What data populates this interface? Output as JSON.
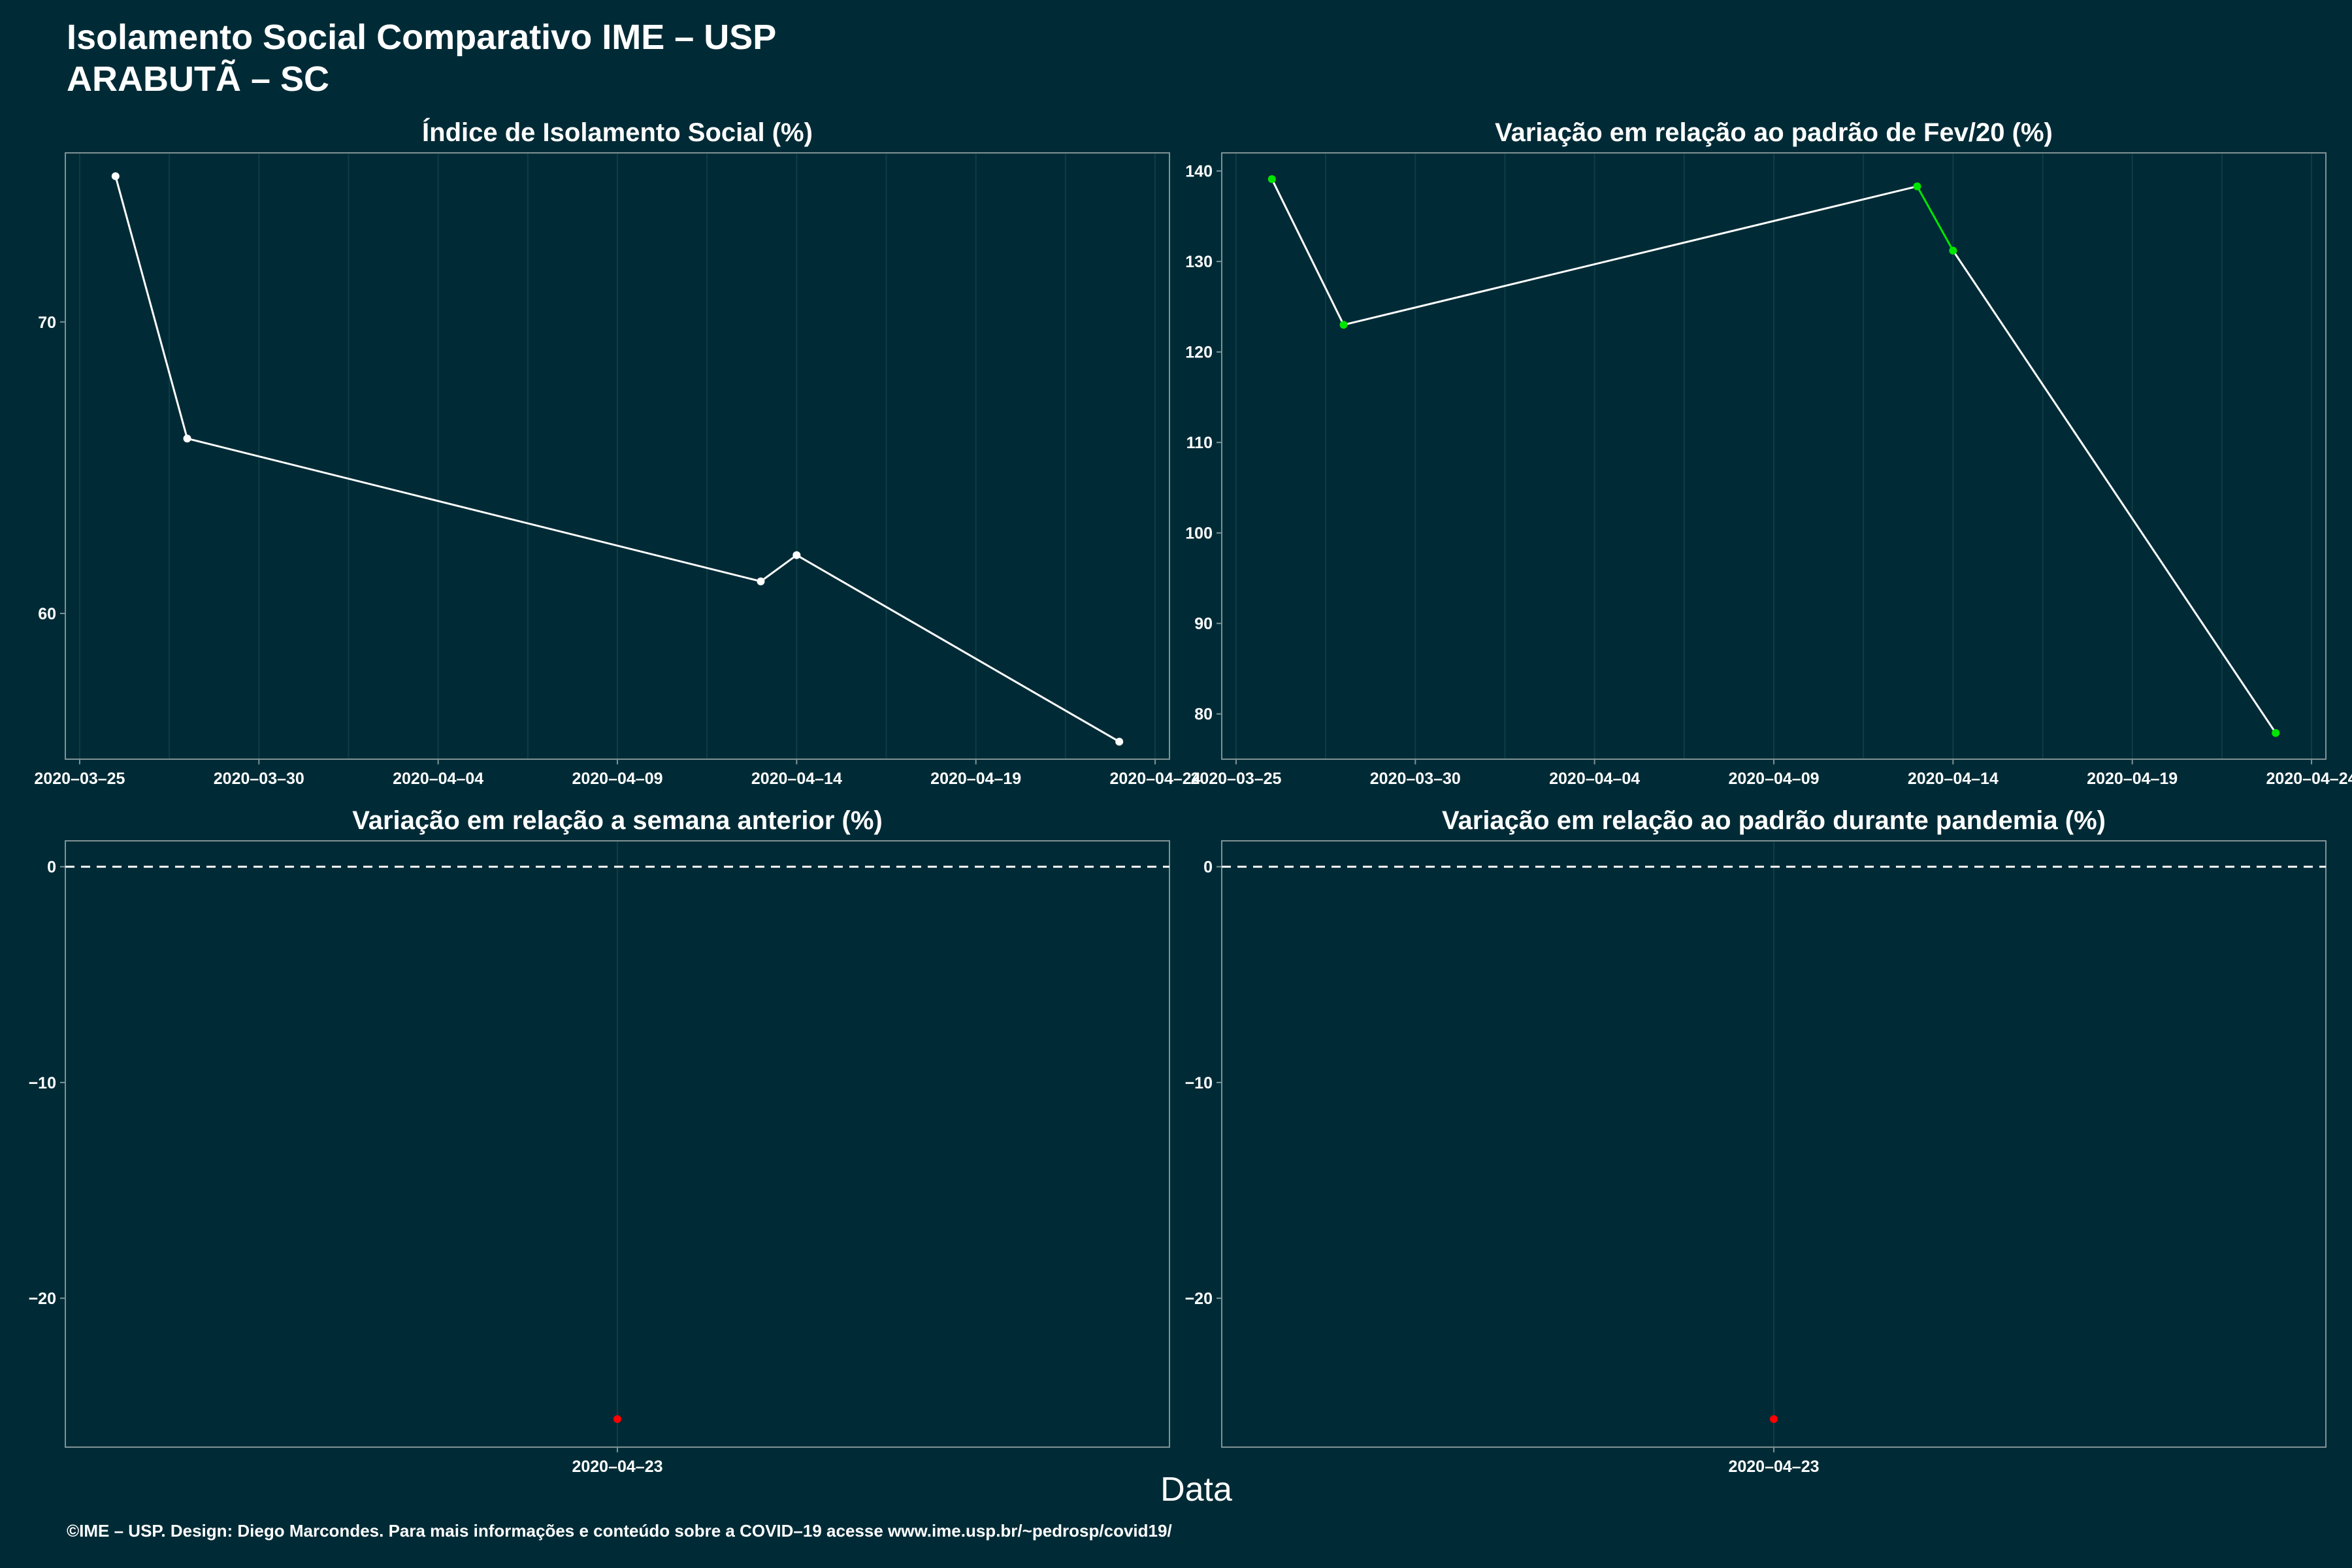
{
  "header": {
    "title": "Isolamento Social Comparativo IME – USP",
    "subtitle": "ARABUTÃ – SC"
  },
  "xlabel": "Data",
  "footer": "©IME – USP. Design: Diego Marcondes. Para mais informações e conteúdo sobre a COVID–19 acesse www.ime.usp.br/~pedrosp/covid19/",
  "colors": {
    "background": "#002b36",
    "line": "#ffffff",
    "grid": "#0e3d47",
    "positive": "#00e600",
    "negative": "#ff0000"
  },
  "chart_data": [
    {
      "type": "line",
      "title": "Índice de Isolamento Social (%)",
      "x": [
        "2020-03-26",
        "2020-03-28",
        "2020-04-13",
        "2020-04-14",
        "2020-04-23"
      ],
      "y": [
        75,
        66,
        61.1,
        62,
        55.6
      ],
      "xticks": [
        "2020–03–25",
        "2020–03–30",
        "2020–04–04",
        "2020–04–09",
        "2020–04–14",
        "2020–04–19",
        "2020–04–24"
      ],
      "xlim": [
        "2020-03-24.6",
        "2020-04-24.4"
      ],
      "yticks": [
        60,
        70
      ],
      "ylim": [
        55,
        75.8
      ],
      "grid": true,
      "point_color": "#ffffff"
    },
    {
      "type": "line",
      "title": "Variação em relação ao padrão de Fev/20 (%)",
      "x": [
        "2020-03-26",
        "2020-03-28",
        "2020-04-13",
        "2020-04-14",
        "2020-04-23"
      ],
      "y": [
        139.1,
        123,
        138.3,
        131.2,
        77.9
      ],
      "segment_colors": [
        "#ffffff",
        "#ffffff",
        "#00e600",
        "#ffffff"
      ],
      "xticks": [
        "2020–03–25",
        "2020–03–30",
        "2020–04–04",
        "2020–04–09",
        "2020–04–14",
        "2020–04–19",
        "2020–04–24"
      ],
      "xlim": [
        "2020-03-24.6",
        "2020-04-24.4"
      ],
      "yticks": [
        80,
        90,
        100,
        110,
        120,
        130,
        140
      ],
      "ylim": [
        75,
        142
      ],
      "grid": true,
      "point_color": "#00e600"
    },
    {
      "type": "scatter",
      "title": "Variação em relação a semana anterior (%)",
      "x": [
        "2020-04-23"
      ],
      "y": [
        -25.6
      ],
      "xticks": [
        "2020–04–23"
      ],
      "yticks": [
        -20,
        -10,
        0
      ],
      "ylim": [
        -26.9,
        1.2
      ],
      "reference_line": 0,
      "grid": true,
      "point_color": "#ff0000"
    },
    {
      "type": "scatter",
      "title": "Variação em relação ao padrão durante pandemia (%)",
      "x": [
        "2020-04-23"
      ],
      "y": [
        -25.6
      ],
      "xticks": [
        "2020–04–23"
      ],
      "yticks": [
        -20,
        -10,
        0
      ],
      "ylim": [
        -26.9,
        1.2
      ],
      "reference_line": 0,
      "grid": true,
      "point_color": "#ff0000"
    }
  ]
}
